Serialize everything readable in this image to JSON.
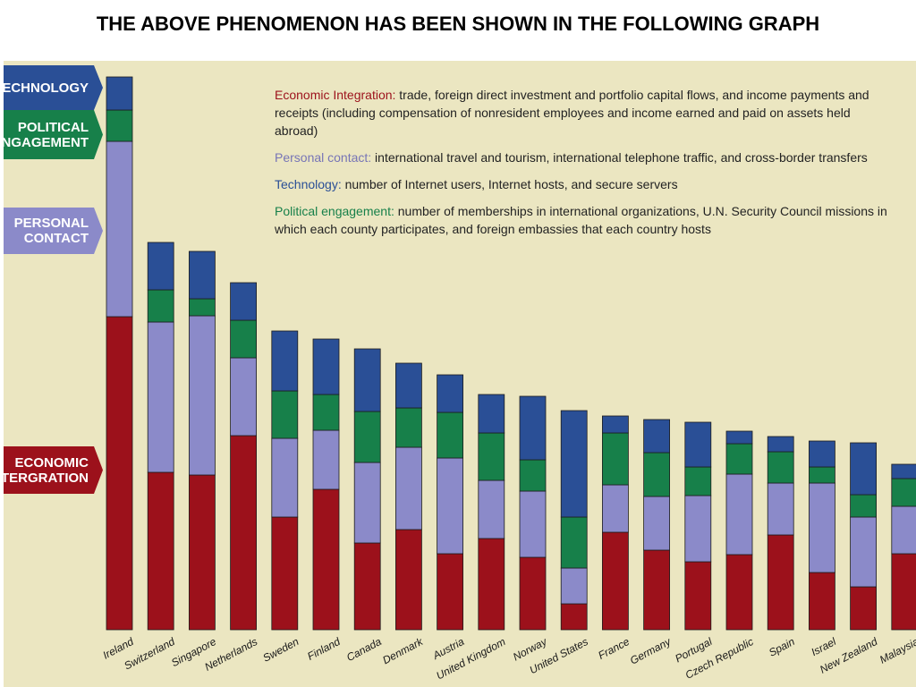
{
  "title": "THE ABOVE PHENOMENON HAS BEEN SHOWN IN THE FOLLOWING GRAPH",
  "side_tags": {
    "technology": "TECHNOLOGY",
    "political": "POLITICAL\nENGAGEMENT",
    "personal": "PERSONAL\nCONTACT",
    "economic": "ECONOMIC\nINTERGRATION"
  },
  "legend": {
    "economic": {
      "label": "Economic Integration:",
      "text": " trade, foreign direct investment and portfolio capital flows, and income payments and receipts (including compensation of nonresident employees and income earned and paid on assets held abroad)"
    },
    "personal": {
      "label": "Personal contact:",
      "text": " international travel and tourism, international telephone traffic, and cross-border transfers"
    },
    "technology": {
      "label": "Technology:",
      "text": " number of Internet users, Internet hosts, and secure servers"
    },
    "political": {
      "label": "Political engagement:",
      "text": " number of memberships in international organizations, U.N. Security Council missions in which each county participates, and foreign embassies that each country hosts"
    }
  },
  "colors": {
    "economic": "#9c111b",
    "personal": "#8b8ac9",
    "political": "#17804a",
    "technology": "#2a4f96",
    "panel": "#ebe6c1"
  },
  "chart_data": {
    "type": "bar",
    "stacked": true,
    "categories": [
      "Ireland",
      "Switzerland",
      "Singapore",
      "Netherlands",
      "Sweden",
      "Finland",
      "Canada",
      "Denmark",
      "Austria",
      "United Kingdom",
      "Norway",
      "United States",
      "France",
      "Germany",
      "Portugal",
      "Czech Republic",
      "Spain",
      "Israel",
      "New Zealand",
      "Malaysia"
    ],
    "series": [
      {
        "name": "Economic Integration",
        "values": [
          350,
          176,
          173,
          217,
          126,
          157,
          97,
          112,
          85,
          102,
          81,
          29,
          109,
          89,
          76,
          84,
          106,
          64,
          48,
          85
        ]
      },
      {
        "name": "Personal contact",
        "values": [
          196,
          168,
          178,
          87,
          88,
          66,
          90,
          92,
          107,
          65,
          74,
          40,
          53,
          60,
          74,
          90,
          58,
          100,
          78,
          53
        ]
      },
      {
        "name": "Political engagement",
        "values": [
          35,
          36,
          19,
          42,
          53,
          40,
          57,
          44,
          51,
          53,
          35,
          57,
          58,
          49,
          32,
          34,
          35,
          18,
          25,
          31
        ]
      },
      {
        "name": "Technology",
        "values": [
          37,
          53,
          53,
          42,
          67,
          62,
          70,
          50,
          42,
          43,
          71,
          119,
          19,
          37,
          50,
          14,
          17,
          29,
          58,
          16
        ]
      }
    ],
    "ylim": [
      0,
      630
    ]
  }
}
